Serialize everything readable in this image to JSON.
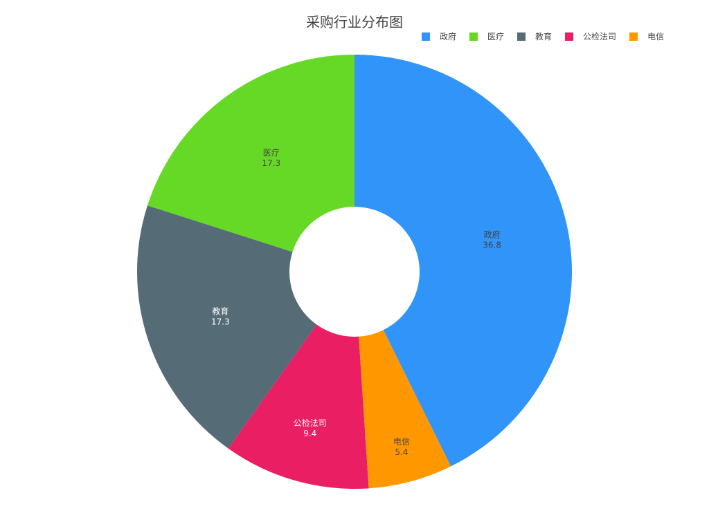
{
  "chart_data": {
    "type": "pie",
    "donut": true,
    "title": "采购行业分布图",
    "labels": [
      "政府",
      "医疗",
      "教育",
      "公检法司",
      "电信"
    ],
    "values": [
      36.8,
      17.3,
      17.3,
      9.4,
      5.4
    ],
    "colors": [
      "#3094F8",
      "#66D926",
      "#556C76",
      "#E91E63",
      "#FF9800"
    ],
    "legend": "top-right"
  }
}
